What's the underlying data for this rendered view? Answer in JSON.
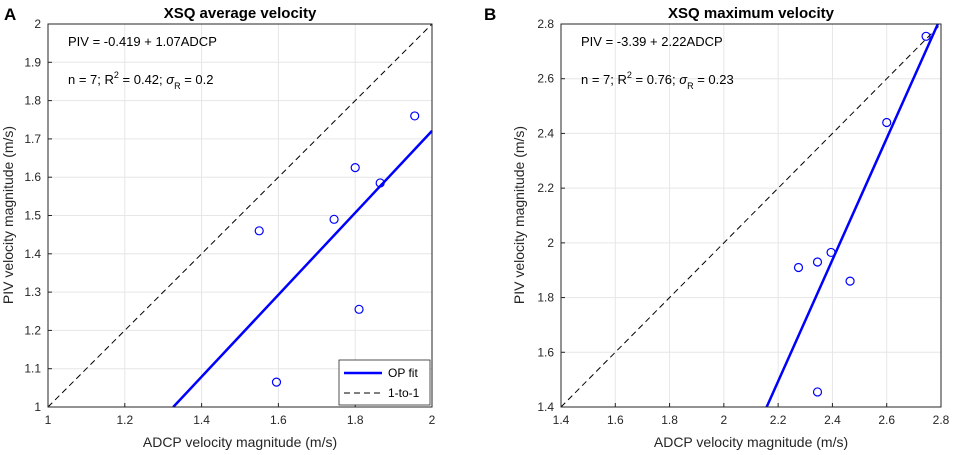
{
  "panels": [
    {
      "label": "A",
      "title": "XSQ average velocity",
      "xlabel": "ADCP velocity magnitude (m/s)",
      "ylabel": "PIV velocity magnitude (m/s)",
      "annotation_equation": "PIV = -0.419 + 1.07ADCP",
      "annotation_stats": "n = 7; R² = 0.42; σR = 0.2",
      "legend": [
        "OP fit",
        "1-to-1"
      ]
    },
    {
      "label": "B",
      "title": "XSQ maximum velocity",
      "xlabel": "ADCP velocity magnitude (m/s)",
      "ylabel": "PIV velocity magnitude (m/s)",
      "annotation_equation": "PIV = -3.39 + 2.22ADCP",
      "annotation_stats": "n = 7; R² = 0.76; σR = 0.23"
    }
  ],
  "colors": {
    "points": "#0000ff",
    "fit": "#0000ff",
    "one_to_one": "#000000",
    "grid": "#e6e6e6",
    "axes": "#262626"
  },
  "chart_data": [
    {
      "type": "scatter",
      "title": "XSQ average velocity",
      "panel_label": "A",
      "xlabel": "ADCP velocity magnitude (m/s)",
      "ylabel": "PIV velocity magnitude (m/s)",
      "xlim": [
        1,
        2
      ],
      "ylim": [
        1,
        2
      ],
      "xticks": [
        1,
        1.2,
        1.4,
        1.6,
        1.8,
        2
      ],
      "xtick_labels": [
        "1",
        "1.2",
        "1.4",
        "1.6",
        "1.8",
        "2"
      ],
      "yticks": [
        1,
        1.1,
        1.2,
        1.3,
        1.4,
        1.5,
        1.6,
        1.7,
        1.8,
        1.9,
        2
      ],
      "ytick_labels": [
        "1",
        "1.1",
        "1.2",
        "1.3",
        "1.4",
        "1.5",
        "1.6",
        "1.7",
        "1.8",
        "1.9",
        "2"
      ],
      "grid": true,
      "points": [
        {
          "x": 1.55,
          "y": 1.46
        },
        {
          "x": 1.595,
          "y": 1.065
        },
        {
          "x": 1.745,
          "y": 1.49
        },
        {
          "x": 1.8,
          "y": 1.625
        },
        {
          "x": 1.81,
          "y": 1.255
        },
        {
          "x": 1.865,
          "y": 1.585
        },
        {
          "x": 1.955,
          "y": 1.76
        }
      ],
      "fit": {
        "name": "OP fit",
        "intercept": -0.419,
        "slope": 1.07
      },
      "reference": {
        "name": "1-to-1",
        "intercept": 0,
        "slope": 1
      },
      "legend": [
        "OP fit",
        "1-to-1"
      ],
      "legend_position": "bottom-right"
    },
    {
      "type": "scatter",
      "title": "XSQ maximum velocity",
      "panel_label": "B",
      "xlabel": "ADCP velocity magnitude (m/s)",
      "ylabel": "PIV velocity magnitude (m/s)",
      "xlim": [
        1.4,
        2.8
      ],
      "ylim": [
        1.4,
        2.8
      ],
      "xticks": [
        1.4,
        1.6,
        1.8,
        2,
        2.2,
        2.4,
        2.6,
        2.8
      ],
      "xtick_labels": [
        "1.4",
        "1.6",
        "1.8",
        "2",
        "2.2",
        "2.4",
        "2.6",
        "2.8"
      ],
      "yticks": [
        1.4,
        1.6,
        1.8,
        2,
        2.2,
        2.4,
        2.6,
        2.8
      ],
      "ytick_labels": [
        "1.4",
        "1.6",
        "1.8",
        "2",
        "2.2",
        "2.4",
        "2.6",
        "2.8"
      ],
      "grid": true,
      "points": [
        {
          "x": 2.275,
          "y": 1.91
        },
        {
          "x": 2.345,
          "y": 1.93
        },
        {
          "x": 2.345,
          "y": 1.455
        },
        {
          "x": 2.395,
          "y": 1.965
        },
        {
          "x": 2.465,
          "y": 1.86
        },
        {
          "x": 2.6,
          "y": 2.44
        },
        {
          "x": 2.745,
          "y": 2.755
        }
      ],
      "fit": {
        "name": "OP fit",
        "intercept": -3.39,
        "slope": 2.22
      },
      "reference": {
        "name": "1-to-1",
        "intercept": 0,
        "slope": 1
      }
    }
  ]
}
